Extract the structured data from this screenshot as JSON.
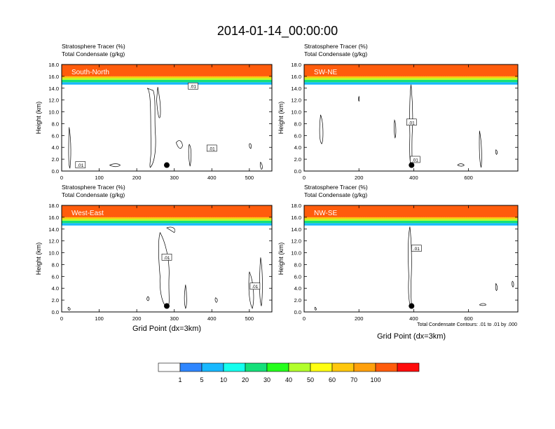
{
  "title": "2014-01-14_00:00:00",
  "colors": {
    "scale": [
      "#ffffff",
      "#2f86ff",
      "#18b8ff",
      "#14ffee",
      "#14e07a",
      "#25ff1c",
      "#b2ff2b",
      "#ffff12",
      "#ffc70c",
      "#ffa00c",
      "#ff5c0c",
      "#ff0c0c"
    ],
    "contour": "#000000",
    "dot": "#000000"
  },
  "colorbar": {
    "labels": [
      "1",
      "5",
      "10",
      "20",
      "30",
      "40",
      "50",
      "60",
      "70",
      "100"
    ]
  },
  "footnote": "Total Condensate Contours: .01 to .01 by .000",
  "chart_data": [
    {
      "type": "heatmap",
      "header_line1": "Stratosphere Tracer   (%)",
      "header_line2": "Total Condensate   (g/kg)",
      "region_label": "South-North",
      "ylabel": "Height (km)",
      "xlabel": "",
      "xlim": [
        0,
        560
      ],
      "ylim": [
        0,
        18
      ],
      "x_ticks": [
        "0",
        "100",
        "200",
        "300",
        "400",
        "500"
      ],
      "y_ticks": [
        "0.0",
        "2.0",
        "4.0",
        "6.0",
        "8.0",
        "10.0",
        "12.0",
        "14.0",
        "16.0",
        "18.0"
      ],
      "tracer_bands": [
        {
          "from_km": 14.6,
          "to_km": 15.0,
          "percent": 5
        },
        {
          "from_km": 15.0,
          "to_km": 15.4,
          "percent": 20
        },
        {
          "from_km": 15.4,
          "to_km": 15.7,
          "percent": 40
        },
        {
          "from_km": 15.7,
          "to_km": 16.0,
          "percent": 60
        },
        {
          "from_km": 16.0,
          "to_km": 18.0,
          "percent": 100
        }
      ],
      "contour_labels": [
        {
          "x": 350,
          "y": 14.3,
          "text": ".01"
        },
        {
          "x": 400,
          "y": 3.8,
          "text": ".01"
        },
        {
          "x": 50,
          "y": 1.0,
          "text": ".01"
        }
      ],
      "marker": {
        "x": 280,
        "y": 1.0
      }
    },
    {
      "type": "heatmap",
      "header_line1": "Stratosphere Tracer   (%)",
      "header_line2": "Total Condensate   (g/kg)",
      "region_label": "SW-NE",
      "ylabel": "Height (km)",
      "xlabel": "",
      "xlim": [
        0,
        780
      ],
      "ylim": [
        0,
        18
      ],
      "x_ticks": [
        "0",
        "200",
        "400",
        "600"
      ],
      "y_ticks": [
        "0.0",
        "2.0",
        "4.0",
        "6.0",
        "8.0",
        "10.0",
        "12.0",
        "14.0",
        "16.0",
        "18.0"
      ],
      "tracer_bands": [
        {
          "from_km": 14.6,
          "to_km": 15.0,
          "percent": 5
        },
        {
          "from_km": 15.0,
          "to_km": 15.4,
          "percent": 20
        },
        {
          "from_km": 15.4,
          "to_km": 15.7,
          "percent": 40
        },
        {
          "from_km": 15.7,
          "to_km": 16.0,
          "percent": 60
        },
        {
          "from_km": 16.0,
          "to_km": 18.0,
          "percent": 100
        }
      ],
      "contour_labels": [
        {
          "x": 392,
          "y": 8.2,
          "text": ".01"
        },
        {
          "x": 405,
          "y": 1.9,
          "text": ".01"
        }
      ],
      "marker": {
        "x": 392,
        "y": 1.0
      }
    },
    {
      "type": "heatmap",
      "header_line1": "Stratosphere Tracer   (%)",
      "header_line2": "Total Condensate   (g/kg)",
      "region_label": "West-East",
      "ylabel": "Height (km)",
      "xlabel": "Grid Point (dx=3km)",
      "xlim": [
        0,
        560
      ],
      "ylim": [
        0,
        18
      ],
      "x_ticks": [
        "0",
        "100",
        "200",
        "300",
        "400",
        "500"
      ],
      "y_ticks": [
        "0.0",
        "2.0",
        "4.0",
        "6.0",
        "8.0",
        "10.0",
        "12.0",
        "14.0",
        "16.0",
        "18.0"
      ],
      "tracer_bands": [
        {
          "from_km": 14.6,
          "to_km": 15.0,
          "percent": 5
        },
        {
          "from_km": 15.0,
          "to_km": 15.4,
          "percent": 20
        },
        {
          "from_km": 15.4,
          "to_km": 15.7,
          "percent": 40
        },
        {
          "from_km": 15.7,
          "to_km": 16.0,
          "percent": 60
        },
        {
          "from_km": 16.0,
          "to_km": 18.0,
          "percent": 100
        }
      ],
      "contour_labels": [
        {
          "x": 280,
          "y": 9.2,
          "text": ".01"
        },
        {
          "x": 515,
          "y": 4.3,
          "text": ".01"
        }
      ],
      "marker": {
        "x": 280,
        "y": 1.0
      }
    },
    {
      "type": "heatmap",
      "header_line1": "Stratosphere Tracer   (%)",
      "header_line2": "Total Condensate   (g/kg)",
      "region_label": "NW-SE",
      "ylabel": "Height (km)",
      "xlabel": "",
      "xlim": [
        0,
        780
      ],
      "ylim": [
        0,
        18
      ],
      "x_ticks": [
        "0",
        "200",
        "400",
        "600"
      ],
      "y_ticks": [
        "0.0",
        "2.0",
        "4.0",
        "6.0",
        "8.0",
        "10.0",
        "12.0",
        "14.0",
        "16.0",
        "18.0"
      ],
      "tracer_bands": [
        {
          "from_km": 14.6,
          "to_km": 15.0,
          "percent": 5
        },
        {
          "from_km": 15.0,
          "to_km": 15.4,
          "percent": 20
        },
        {
          "from_km": 15.4,
          "to_km": 15.7,
          "percent": 40
        },
        {
          "from_km": 15.7,
          "to_km": 16.0,
          "percent": 60
        },
        {
          "from_km": 16.0,
          "to_km": 18.0,
          "percent": 100
        }
      ],
      "contour_labels": [
        {
          "x": 410,
          "y": 10.7,
          "text": ".01"
        }
      ],
      "marker": {
        "x": 392,
        "y": 1.0
      }
    }
  ],
  "shared_xlabel": "Grid Point (dx=3km)"
}
